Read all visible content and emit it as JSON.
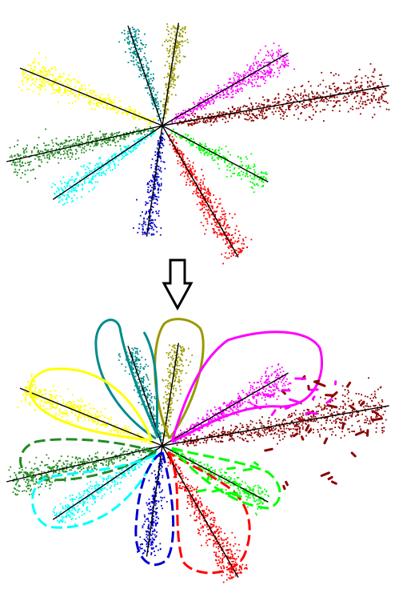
{
  "diagram": {
    "top_panel": {
      "clusters": [
        {
          "name": "yellow",
          "color": "#ffff00",
          "angle_deg": 202,
          "length": 192,
          "count": 420
        },
        {
          "name": "teal",
          "color": "#008b8b",
          "angle_deg": 251,
          "length": 132,
          "count": 260
        },
        {
          "name": "olive",
          "color": "#999900",
          "angle_deg": 279,
          "length": 130,
          "count": 240
        },
        {
          "name": "magenta",
          "color": "#ff00ff",
          "angle_deg": 330,
          "length": 182,
          "count": 420
        },
        {
          "name": "dark-red",
          "color": "#8b0000",
          "angle_deg": 350,
          "length": 288,
          "count": 650
        },
        {
          "name": "green",
          "color": "#00ff00",
          "angle_deg": 28,
          "length": 150,
          "count": 240
        },
        {
          "name": "red",
          "color": "#ff0000",
          "angle_deg": 60,
          "length": 190,
          "count": 460
        },
        {
          "name": "blue",
          "color": "#0000cd",
          "angle_deg": 98,
          "length": 140,
          "count": 260
        },
        {
          "name": "cyan",
          "color": "#00ffff",
          "angle_deg": 146,
          "length": 165,
          "count": 340
        },
        {
          "name": "dark-green",
          "color": "#228b22",
          "angle_deg": 167,
          "length": 200,
          "count": 420
        }
      ]
    },
    "arrow": {
      "direction": "down",
      "stroke_color": "#000000"
    },
    "bottom_panel": {
      "clusters_repeated": true,
      "outlines": [
        {
          "name": "olive-loop",
          "color": "#999900",
          "style": "solid"
        },
        {
          "name": "teal-loop",
          "color": "#008b8b",
          "style": "solid"
        },
        {
          "name": "magenta-loop",
          "color": "#ff00ff",
          "style": "solid"
        },
        {
          "name": "yellow-loop",
          "color": "#ffff00",
          "style": "solid"
        },
        {
          "name": "dark-green-loop",
          "color": "#228b22",
          "style": "dashed"
        },
        {
          "name": "cyan-loop",
          "color": "#00ffff",
          "style": "dashed"
        },
        {
          "name": "blue-loop",
          "color": "#0000cd",
          "style": "dashed"
        },
        {
          "name": "red-loop",
          "color": "#ff0000",
          "style": "dashed"
        },
        {
          "name": "green-loop",
          "color": "#00ff00",
          "style": "dashed"
        },
        {
          "name": "dark-red-loop",
          "color": "#8b0000",
          "style": "dashed"
        }
      ]
    }
  }
}
